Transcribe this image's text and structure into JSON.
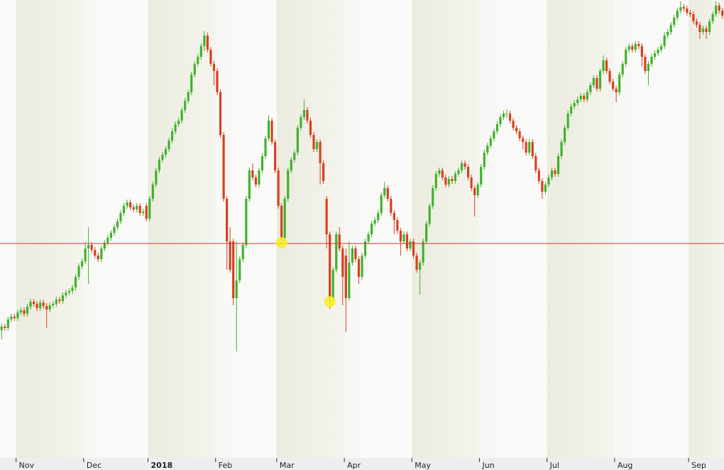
{
  "chart_data": {
    "type": "candlestick",
    "xlim": [
      -0.5,
      224.5
    ],
    "ylim": [
      2300,
      2940
    ],
    "xticks": [
      {
        "value": 5,
        "label": "Nov"
      },
      {
        "value": 26,
        "label": "Dec"
      },
      {
        "value": 46,
        "label": "2018"
      },
      {
        "value": 67,
        "label": "Feb"
      },
      {
        "value": 86,
        "label": "Mar"
      },
      {
        "value": 107,
        "label": "Apr"
      },
      {
        "value": 128,
        "label": "May"
      },
      {
        "value": 149,
        "label": "Jun"
      },
      {
        "value": 170,
        "label": "Jul"
      },
      {
        "value": 191,
        "label": "Aug"
      },
      {
        "value": 214,
        "label": "Sep"
      }
    ],
    "up_color": "#3fb22a",
    "down_color": "#d8401f",
    "hline": 2597,
    "hline_color": "#e03030",
    "highlights": [
      {
        "x": 87,
        "y": 2598
      },
      {
        "x": 102,
        "y": 2515
      }
    ],
    "highlight_color": "#f5f020",
    "ohlc": [
      [
        2475,
        2484,
        2462,
        2480
      ],
      [
        2480,
        2484,
        2474,
        2478
      ],
      [
        2478,
        2494,
        2474,
        2490
      ],
      [
        2490,
        2498,
        2486,
        2494
      ],
      [
        2494,
        2498,
        2488,
        2492
      ],
      [
        2492,
        2504,
        2488,
        2500
      ],
      [
        2500,
        2507,
        2496,
        2503
      ],
      [
        2503,
        2507,
        2494,
        2498
      ],
      [
        2498,
        2512,
        2494,
        2508
      ],
      [
        2508,
        2519,
        2504,
        2515
      ],
      [
        2515,
        2519,
        2508,
        2512
      ],
      [
        2512,
        2516,
        2502,
        2506
      ],
      [
        2506,
        2518,
        2502,
        2514
      ],
      [
        2514,
        2518,
        2505,
        2509
      ],
      [
        2509,
        2513,
        2478,
        2504
      ],
      [
        2504,
        2514,
        2500,
        2510
      ],
      [
        2510,
        2516,
        2506,
        2512
      ],
      [
        2512,
        2522,
        2508,
        2518
      ],
      [
        2518,
        2522,
        2512,
        2516
      ],
      [
        2516,
        2528,
        2512,
        2524
      ],
      [
        2524,
        2532,
        2520,
        2528
      ],
      [
        2528,
        2534,
        2524,
        2530
      ],
      [
        2530,
        2539,
        2526,
        2535
      ],
      [
        2535,
        2554,
        2531,
        2550
      ],
      [
        2550,
        2569,
        2546,
        2565
      ],
      [
        2565,
        2576,
        2561,
        2572
      ],
      [
        2572,
        2600,
        2568,
        2590
      ],
      [
        2590,
        2620,
        2540,
        2595
      ],
      [
        2595,
        2599,
        2584,
        2588
      ],
      [
        2588,
        2592,
        2576,
        2580
      ],
      [
        2580,
        2584,
        2571,
        2575
      ],
      [
        2575,
        2594,
        2571,
        2590
      ],
      [
        2590,
        2602,
        2586,
        2598
      ],
      [
        2598,
        2609,
        2594,
        2605
      ],
      [
        2605,
        2616,
        2601,
        2612
      ],
      [
        2612,
        2624,
        2608,
        2620
      ],
      [
        2620,
        2632,
        2616,
        2628
      ],
      [
        2628,
        2644,
        2624,
        2640
      ],
      [
        2640,
        2654,
        2636,
        2650
      ],
      [
        2650,
        2659,
        2646,
        2655
      ],
      [
        2655,
        2659,
        2644,
        2648
      ],
      [
        2648,
        2652,
        2641,
        2645
      ],
      [
        2645,
        2654,
        2641,
        2650
      ],
      [
        2650,
        2654,
        2636,
        2640
      ],
      [
        2640,
        2646,
        2636,
        2642
      ],
      [
        2650,
        2654,
        2628,
        2632
      ],
      [
        2632,
        2664,
        2628,
        2660
      ],
      [
        2660,
        2684,
        2656,
        2680
      ],
      [
        2680,
        2704,
        2676,
        2700
      ],
      [
        2700,
        2719,
        2696,
        2715
      ],
      [
        2715,
        2726,
        2711,
        2722
      ],
      [
        2722,
        2734,
        2718,
        2730
      ],
      [
        2730,
        2746,
        2726,
        2742
      ],
      [
        2742,
        2759,
        2738,
        2755
      ],
      [
        2755,
        2769,
        2751,
        2765
      ],
      [
        2765,
        2774,
        2761,
        2770
      ],
      [
        2770,
        2789,
        2766,
        2785
      ],
      [
        2785,
        2802,
        2781,
        2798
      ],
      [
        2798,
        2814,
        2794,
        2810
      ],
      [
        2810,
        2839,
        2806,
        2835
      ],
      [
        2835,
        2854,
        2831,
        2850
      ],
      [
        2850,
        2864,
        2846,
        2860
      ],
      [
        2860,
        2879,
        2856,
        2875
      ],
      [
        2875,
        2896,
        2868,
        2890
      ],
      [
        2890,
        2894,
        2866,
        2870
      ],
      [
        2870,
        2874,
        2846,
        2850
      ],
      [
        2850,
        2854,
        2820,
        2840
      ],
      [
        2840,
        2844,
        2806,
        2810
      ],
      [
        2810,
        2814,
        2746,
        2750
      ],
      [
        2750,
        2754,
        2656,
        2660
      ],
      [
        2660,
        2664,
        2560,
        2600
      ],
      [
        2600,
        2620,
        2556,
        2560
      ],
      [
        2600,
        2604,
        2510,
        2520
      ],
      [
        2520,
        2600,
        2445,
        2545
      ],
      [
        2545,
        2579,
        2541,
        2575
      ],
      [
        2575,
        2599,
        2571,
        2595
      ],
      [
        2595,
        2664,
        2591,
        2660
      ],
      [
        2660,
        2704,
        2656,
        2700
      ],
      [
        2700,
        2710,
        2686,
        2690
      ],
      [
        2690,
        2694,
        2676,
        2680
      ],
      [
        2680,
        2704,
        2676,
        2700
      ],
      [
        2700,
        2724,
        2696,
        2720
      ],
      [
        2720,
        2749,
        2716,
        2745
      ],
      [
        2745,
        2778,
        2741,
        2770
      ],
      [
        2770,
        2774,
        2736,
        2740
      ],
      [
        2740,
        2744,
        2696,
        2700
      ],
      [
        2700,
        2704,
        2646,
        2650
      ],
      [
        2650,
        2654,
        2595,
        2605
      ],
      [
        2605,
        2664,
        2601,
        2660
      ],
      [
        2660,
        2704,
        2656,
        2700
      ],
      [
        2700,
        2719,
        2696,
        2715
      ],
      [
        2715,
        2729,
        2711,
        2725
      ],
      [
        2725,
        2764,
        2721,
        2760
      ],
      [
        2760,
        2779,
        2756,
        2775
      ],
      [
        2775,
        2800,
        2771,
        2785
      ],
      [
        2785,
        2789,
        2766,
        2770
      ],
      [
        2770,
        2774,
        2746,
        2750
      ],
      [
        2750,
        2754,
        2726,
        2730
      ],
      [
        2730,
        2744,
        2726,
        2740
      ],
      [
        2740,
        2744,
        2680,
        2710
      ],
      [
        2710,
        2714,
        2681,
        2685
      ],
      [
        2660,
        2664,
        2590,
        2610
      ],
      [
        2610,
        2614,
        2505,
        2520
      ],
      [
        2520,
        2564,
        2516,
        2560
      ],
      [
        2560,
        2614,
        2556,
        2610
      ],
      [
        2610,
        2620,
        2586,
        2590
      ],
      [
        2590,
        2594,
        2510,
        2550
      ],
      [
        2580,
        2590,
        2472,
        2520
      ],
      [
        2520,
        2600,
        2516,
        2570
      ],
      [
        2570,
        2594,
        2566,
        2590
      ],
      [
        2590,
        2594,
        2571,
        2575
      ],
      [
        2575,
        2579,
        2540,
        2550
      ],
      [
        2550,
        2584,
        2546,
        2580
      ],
      [
        2580,
        2604,
        2576,
        2600
      ],
      [
        2600,
        2614,
        2596,
        2610
      ],
      [
        2610,
        2629,
        2606,
        2625
      ],
      [
        2625,
        2634,
        2621,
        2630
      ],
      [
        2630,
        2644,
        2626,
        2640
      ],
      [
        2640,
        2669,
        2636,
        2665
      ],
      [
        2665,
        2684,
        2661,
        2675
      ],
      [
        2675,
        2679,
        2656,
        2660
      ],
      [
        2660,
        2664,
        2636,
        2640
      ],
      [
        2640,
        2644,
        2610,
        2630
      ],
      [
        2630,
        2634,
        2611,
        2615
      ],
      [
        2615,
        2619,
        2580,
        2600
      ],
      [
        2600,
        2614,
        2596,
        2610
      ],
      [
        2610,
        2614,
        2586,
        2590
      ],
      [
        2590,
        2604,
        2586,
        2600
      ],
      [
        2600,
        2604,
        2576,
        2580
      ],
      [
        2580,
        2584,
        2556,
        2560
      ],
      [
        2560,
        2574,
        2525,
        2570
      ],
      [
        2570,
        2604,
        2566,
        2600
      ],
      [
        2600,
        2629,
        2596,
        2625
      ],
      [
        2625,
        2654,
        2621,
        2650
      ],
      [
        2650,
        2679,
        2646,
        2675
      ],
      [
        2675,
        2699,
        2671,
        2695
      ],
      [
        2695,
        2704,
        2691,
        2700
      ],
      [
        2700,
        2704,
        2686,
        2690
      ],
      [
        2690,
        2694,
        2676,
        2680
      ],
      [
        2680,
        2692,
        2676,
        2688
      ],
      [
        2688,
        2692,
        2681,
        2685
      ],
      [
        2685,
        2699,
        2681,
        2695
      ],
      [
        2695,
        2704,
        2691,
        2700
      ],
      [
        2700,
        2714,
        2696,
        2710
      ],
      [
        2710,
        2714,
        2701,
        2705
      ],
      [
        2705,
        2709,
        2686,
        2690
      ],
      [
        2690,
        2694,
        2671,
        2675
      ],
      [
        2675,
        2679,
        2635,
        2665
      ],
      [
        2665,
        2684,
        2661,
        2680
      ],
      [
        2680,
        2709,
        2676,
        2705
      ],
      [
        2705,
        2729,
        2701,
        2725
      ],
      [
        2725,
        2739,
        2721,
        2735
      ],
      [
        2735,
        2749,
        2731,
        2745
      ],
      [
        2745,
        2759,
        2741,
        2755
      ],
      [
        2755,
        2769,
        2751,
        2765
      ],
      [
        2765,
        2779,
        2761,
        2775
      ],
      [
        2775,
        2784,
        2771,
        2780
      ],
      [
        2780,
        2786,
        2774,
        2780
      ],
      [
        2780,
        2784,
        2766,
        2770
      ],
      [
        2770,
        2774,
        2756,
        2760
      ],
      [
        2760,
        2764,
        2751,
        2755
      ],
      [
        2755,
        2759,
        2741,
        2745
      ],
      [
        2745,
        2749,
        2730,
        2740
      ],
      [
        2740,
        2744,
        2721,
        2725
      ],
      [
        2725,
        2744,
        2721,
        2740
      ],
      [
        2740,
        2744,
        2716,
        2720
      ],
      [
        2720,
        2724,
        2696,
        2700
      ],
      [
        2700,
        2704,
        2681,
        2685
      ],
      [
        2685,
        2689,
        2660,
        2670
      ],
      [
        2670,
        2684,
        2666,
        2680
      ],
      [
        2680,
        2694,
        2676,
        2690
      ],
      [
        2690,
        2704,
        2686,
        2700
      ],
      [
        2700,
        2704,
        2691,
        2695
      ],
      [
        2695,
        2724,
        2691,
        2720
      ],
      [
        2720,
        2744,
        2716,
        2740
      ],
      [
        2740,
        2764,
        2736,
        2760
      ],
      [
        2760,
        2784,
        2756,
        2780
      ],
      [
        2780,
        2794,
        2776,
        2790
      ],
      [
        2790,
        2799,
        2786,
        2795
      ],
      [
        2795,
        2804,
        2791,
        2800
      ],
      [
        2800,
        2809,
        2796,
        2805
      ],
      [
        2805,
        2809,
        2796,
        2800
      ],
      [
        2800,
        2814,
        2796,
        2810
      ],
      [
        2810,
        2824,
        2806,
        2820
      ],
      [
        2820,
        2834,
        2816,
        2830
      ],
      [
        2830,
        2834,
        2811,
        2815
      ],
      [
        2815,
        2844,
        2811,
        2840
      ],
      [
        2840,
        2862,
        2836,
        2855
      ],
      [
        2855,
        2859,
        2836,
        2840
      ],
      [
        2840,
        2844,
        2821,
        2825
      ],
      [
        2825,
        2829,
        2811,
        2815
      ],
      [
        2815,
        2819,
        2796,
        2810
      ],
      [
        2810,
        2839,
        2806,
        2835
      ],
      [
        2835,
        2854,
        2831,
        2850
      ],
      [
        2850,
        2874,
        2846,
        2870
      ],
      [
        2870,
        2879,
        2866,
        2875
      ],
      [
        2875,
        2879,
        2866,
        2870
      ],
      [
        2870,
        2882,
        2866,
        2878
      ],
      [
        2878,
        2882,
        2871,
        2875
      ],
      [
        2875,
        2879,
        2846,
        2860
      ],
      [
        2860,
        2864,
        2836,
        2840
      ],
      [
        2840,
        2854,
        2820,
        2850
      ],
      [
        2850,
        2864,
        2846,
        2860
      ],
      [
        2860,
        2869,
        2856,
        2865
      ],
      [
        2865,
        2874,
        2861,
        2870
      ],
      [
        2870,
        2879,
        2866,
        2875
      ],
      [
        2875,
        2894,
        2871,
        2890
      ],
      [
        2890,
        2899,
        2886,
        2895
      ],
      [
        2895,
        2909,
        2891,
        2905
      ],
      [
        2905,
        2919,
        2901,
        2915
      ],
      [
        2915,
        2929,
        2911,
        2925
      ],
      [
        2925,
        2938,
        2921,
        2930
      ],
      [
        2930,
        2934,
        2924,
        2928
      ],
      [
        2928,
        2932,
        2918,
        2922
      ],
      [
        2922,
        2926,
        2916,
        2920
      ],
      [
        2920,
        2924,
        2906,
        2910
      ],
      [
        2910,
        2914,
        2901,
        2905
      ],
      [
        2905,
        2909,
        2885,
        2895
      ],
      [
        2895,
        2904,
        2891,
        2900
      ],
      [
        2900,
        2904,
        2885,
        2895
      ],
      [
        2895,
        2914,
        2891,
        2910
      ],
      [
        2910,
        2924,
        2906,
        2920
      ],
      [
        2920,
        2938,
        2916,
        2932
      ],
      [
        2932,
        2936,
        2921,
        2925
      ],
      [
        2925,
        2929,
        2914,
        2918
      ]
    ]
  }
}
